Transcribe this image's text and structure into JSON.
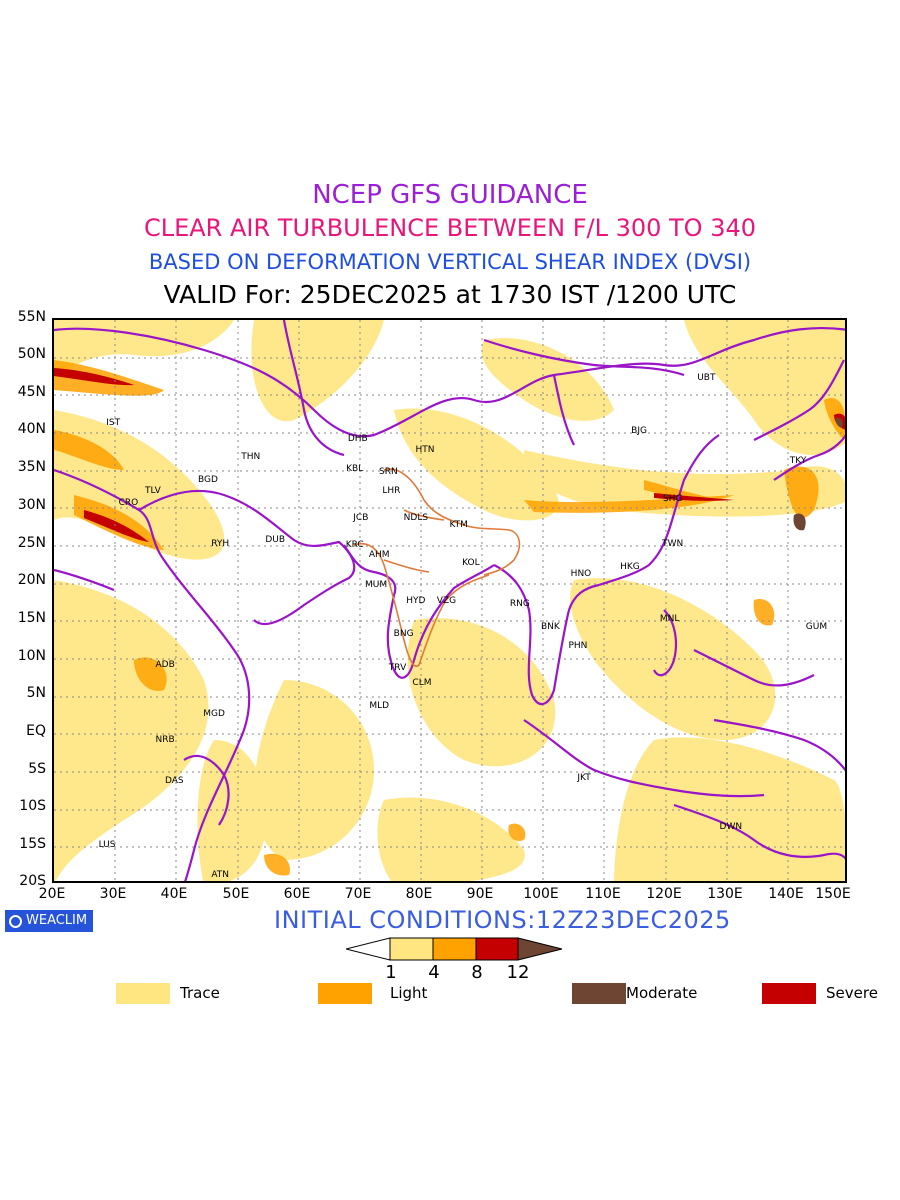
{
  "titles": {
    "line1": "NCEP GFS GUIDANCE",
    "line2": "CLEAR AIR TURBULENCE BETWEEN F/L 300 TO 340",
    "line3": "BASED ON DEFORMATION VERTICAL SHEAR INDEX (DVSI)",
    "line4": "VALID For: 25DEC2025 at 1730 IST /1200 UTC"
  },
  "map": {
    "lat_labels": [
      "55N",
      "50N",
      "45N",
      "40N",
      "35N",
      "30N",
      "25N",
      "20N",
      "15N",
      "10N",
      "5N",
      "EQ",
      "5S",
      "10S",
      "15S",
      "20S"
    ],
    "lon_labels": [
      "20E",
      "30E",
      "40E",
      "50E",
      "60E",
      "70E",
      "80E",
      "90E",
      "100E",
      "110E",
      "120E",
      "130E",
      "140E",
      "150E"
    ],
    "extent": {
      "lon_min": 20,
      "lon_max": 150,
      "lat_min": -20,
      "lat_max": 55
    },
    "cities": [
      {
        "code": "UBT",
        "lon": 127.0,
        "lat": 47.0
      },
      {
        "code": "IST",
        "lon": 30.0,
        "lat": 41.0
      },
      {
        "code": "BJG",
        "lon": 116.0,
        "lat": 40.0
      },
      {
        "code": "DHB",
        "lon": 70.0,
        "lat": 39.0
      },
      {
        "code": "HTN",
        "lon": 81.0,
        "lat": 37.5
      },
      {
        "code": "THN",
        "lon": 52.5,
        "lat": 36.5
      },
      {
        "code": "TKY",
        "lon": 142.0,
        "lat": 36.0
      },
      {
        "code": "KBL",
        "lon": 69.5,
        "lat": 35.0
      },
      {
        "code": "SRN",
        "lon": 75.0,
        "lat": 34.5
      },
      {
        "code": "BGD",
        "lon": 45.5,
        "lat": 33.5
      },
      {
        "code": "TLV",
        "lon": 36.5,
        "lat": 32.0
      },
      {
        "code": "LHR",
        "lon": 75.5,
        "lat": 32.0
      },
      {
        "code": "SHG",
        "lon": 121.5,
        "lat": 31.0
      },
      {
        "code": "CRO",
        "lon": 32.5,
        "lat": 30.5
      },
      {
        "code": "JCB",
        "lon": 70.5,
        "lat": 28.5
      },
      {
        "code": "NDLS",
        "lon": 79.5,
        "lat": 28.5
      },
      {
        "code": "KTM",
        "lon": 86.5,
        "lat": 27.5
      },
      {
        "code": "RYH",
        "lon": 47.5,
        "lat": 25.0
      },
      {
        "code": "DUB",
        "lon": 56.5,
        "lat": 25.5
      },
      {
        "code": "KRC",
        "lon": 69.5,
        "lat": 24.9
      },
      {
        "code": "TWN",
        "lon": 121.5,
        "lat": 25.0
      },
      {
        "code": "AHM",
        "lon": 73.5,
        "lat": 23.5
      },
      {
        "code": "KOL",
        "lon": 88.5,
        "lat": 22.5
      },
      {
        "code": "HKG",
        "lon": 114.5,
        "lat": 22.0
      },
      {
        "code": "HNO",
        "lon": 106.5,
        "lat": 21.0
      },
      {
        "code": "MUM",
        "lon": 73.0,
        "lat": 19.5
      },
      {
        "code": "HYD",
        "lon": 79.5,
        "lat": 17.5
      },
      {
        "code": "VZG",
        "lon": 84.5,
        "lat": 17.5
      },
      {
        "code": "RNG",
        "lon": 96.5,
        "lat": 17.0
      },
      {
        "code": "MNL",
        "lon": 121.0,
        "lat": 15.0
      },
      {
        "code": "BNK",
        "lon": 101.5,
        "lat": 14.0
      },
      {
        "code": "GUM",
        "lon": 145.0,
        "lat": 14.0
      },
      {
        "code": "BNG",
        "lon": 77.5,
        "lat": 13.0
      },
      {
        "code": "PHN",
        "lon": 106.0,
        "lat": 11.5
      },
      {
        "code": "ADB",
        "lon": 38.5,
        "lat": 9.0
      },
      {
        "code": "TRV",
        "lon": 76.5,
        "lat": 8.5
      },
      {
        "code": "CLM",
        "lon": 80.5,
        "lat": 6.5
      },
      {
        "code": "MLD",
        "lon": 73.5,
        "lat": 3.5
      },
      {
        "code": "MGD",
        "lon": 46.5,
        "lat": 2.5
      },
      {
        "code": "NRB",
        "lon": 38.5,
        "lat": -1.0
      },
      {
        "code": "DAS",
        "lon": 40.0,
        "lat": -6.5
      },
      {
        "code": "JKT",
        "lon": 107.0,
        "lat": -6.0
      },
      {
        "code": "DWN",
        "lon": 131.0,
        "lat": -12.5
      },
      {
        "code": "LUS",
        "lon": 29.0,
        "lat": -15.0
      },
      {
        "code": "ATN",
        "lon": 47.5,
        "lat": -19.0
      }
    ]
  },
  "footer": {
    "logo_text": "WEACLIM",
    "initial_conditions": "INITIAL CONDITIONS:12Z23DEC2025"
  },
  "colorbar": {
    "ticks": [
      "1",
      "4",
      "8",
      "12"
    ],
    "colors": {
      "trace": "#ffe680",
      "light": "#ffa200",
      "severe": "#c40000",
      "moderate": "#6e4433"
    }
  },
  "legend": [
    {
      "label": "Trace",
      "color": "#ffe680"
    },
    {
      "label": "Light",
      "color": "#ffa200"
    },
    {
      "label": "Moderate",
      "color": "#6e4433"
    },
    {
      "label": "Severe",
      "color": "#c40000"
    }
  ]
}
